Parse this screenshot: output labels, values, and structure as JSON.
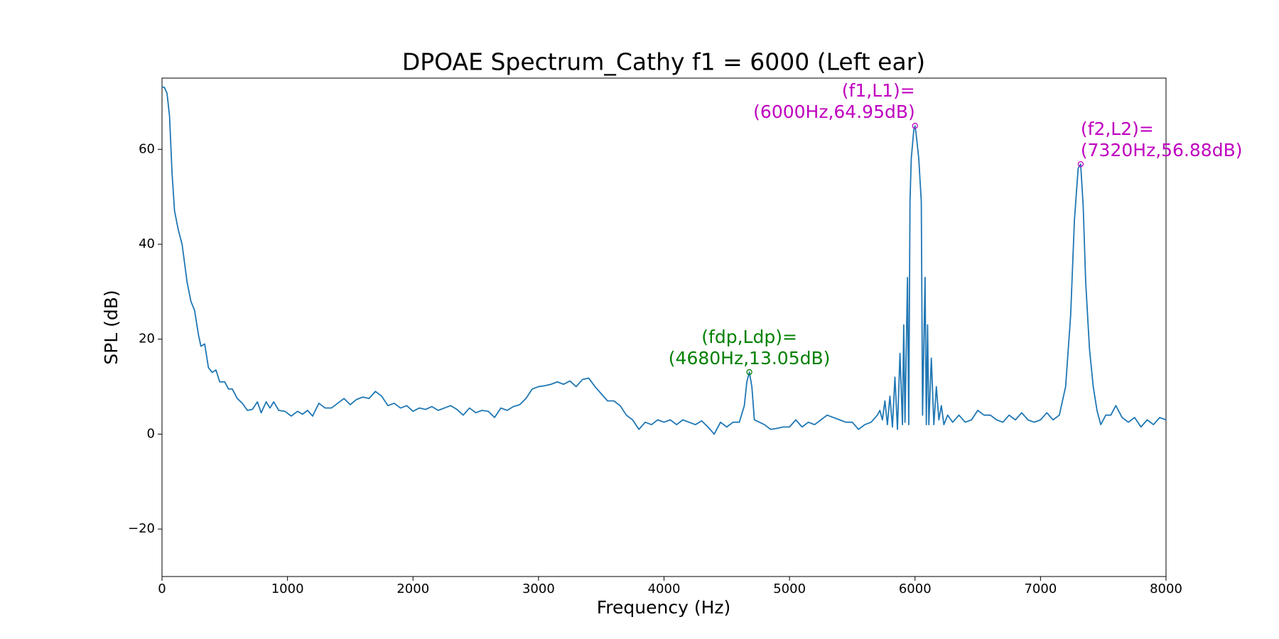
{
  "chart_data": {
    "type": "line",
    "title": "DPOAE Spectrum_Cathy f1 = 6000 (Left ear)",
    "x_label": "Frequency (Hz)",
    "y_label": "SPL (dB)",
    "color": "#1f77b4",
    "xlim": [
      0,
      8000
    ],
    "ylim": [
      -30,
      75
    ],
    "xticks": [
      0,
      1000,
      2000,
      3000,
      4000,
      5000,
      6000,
      7000,
      8000
    ],
    "yticks": [
      {
        "value": -20,
        "label": "−20"
      },
      0,
      20,
      40,
      60
    ],
    "x": [
      0,
      20,
      40,
      60,
      80,
      100,
      130,
      160,
      200,
      230,
      260,
      290,
      310,
      340,
      370,
      400,
      430,
      460,
      500,
      530,
      560,
      600,
      640,
      680,
      720,
      760,
      790,
      830,
      860,
      890,
      930,
      980,
      1030,
      1080,
      1120,
      1160,
      1200,
      1250,
      1300,
      1350,
      1400,
      1450,
      1500,
      1550,
      1600,
      1650,
      1700,
      1750,
      1800,
      1850,
      1900,
      1950,
      2000,
      2050,
      2100,
      2150,
      2200,
      2250,
      2300,
      2350,
      2400,
      2450,
      2500,
      2550,
      2600,
      2650,
      2700,
      2750,
      2800,
      2850,
      2900,
      2950,
      3000,
      3050,
      3100,
      3150,
      3200,
      3250,
      3300,
      3350,
      3400,
      3450,
      3500,
      3550,
      3600,
      3650,
      3700,
      3750,
      3800,
      3850,
      3900,
      3950,
      4000,
      4050,
      4100,
      4150,
      4200,
      4250,
      4300,
      4350,
      4400,
      4450,
      4500,
      4550,
      4600,
      4640,
      4660,
      4680,
      4700,
      4720,
      4760,
      4800,
      4850,
      4900,
      4950,
      5000,
      5050,
      5100,
      5150,
      5200,
      5250,
      5300,
      5350,
      5400,
      5450,
      5500,
      5550,
      5600,
      5650,
      5700,
      5720,
      5740,
      5760,
      5780,
      5800,
      5820,
      5840,
      5860,
      5880,
      5900,
      5910,
      5920,
      5940,
      5950,
      5960,
      5970,
      5990,
      6000,
      6010,
      6030,
      6050,
      6060,
      6080,
      6090,
      6100,
      6110,
      6130,
      6150,
      6170,
      6190,
      6210,
      6230,
      6260,
      6300,
      6350,
      6400,
      6450,
      6500,
      6550,
      6600,
      6650,
      6700,
      6750,
      6800,
      6850,
      6900,
      6950,
      7000,
      7050,
      7100,
      7150,
      7200,
      7240,
      7270,
      7300,
      7320,
      7340,
      7360,
      7390,
      7420,
      7450,
      7480,
      7520,
      7560,
      7600,
      7650,
      7700,
      7750,
      7800,
      7850,
      7900,
      7950,
      8000
    ],
    "values": [
      73.2,
      73,
      71.8,
      67,
      55,
      47,
      43,
      40,
      32,
      28,
      26,
      21,
      18.5,
      19,
      14,
      13,
      13.5,
      11,
      11,
      9.5,
      9.5,
      7.5,
      6.5,
      5,
      5.2,
      6.8,
      4.5,
      6.8,
      5.5,
      6.8,
      5,
      4.8,
      3.8,
      4.8,
      4.2,
      5,
      3.8,
      6.5,
      5.5,
      5.5,
      6.5,
      7.5,
      6.2,
      7.3,
      7.8,
      7.5,
      9,
      8,
      6,
      6.5,
      5.5,
      6,
      4.8,
      5.5,
      5.2,
      5.8,
      5,
      5.5,
      6,
      5.2,
      4,
      5.5,
      4.5,
      5,
      4.8,
      3.5,
      5.5,
      5,
      5.8,
      6.2,
      7.5,
      9.5,
      10,
      10.2,
      10.5,
      11,
      10.5,
      11.2,
      10,
      11.5,
      11.8,
      10,
      8.5,
      7,
      7,
      6,
      4,
      3,
      1,
      2.5,
      2,
      3,
      2.5,
      3,
      2,
      3,
      2.5,
      2,
      2.8,
      1.5,
      0,
      2.5,
      1.5,
      2.5,
      2.5,
      6,
      11,
      13.05,
      10,
      3,
      2.5,
      2,
      1,
      1.2,
      1.5,
      1.5,
      3,
      1.5,
      2.5,
      2,
      3,
      4,
      3.5,
      3,
      2.5,
      2.5,
      1,
      2,
      2.5,
      4,
      5,
      3,
      7,
      2,
      8,
      1.5,
      12,
      1,
      17,
      2,
      23,
      2.5,
      33,
      2,
      49,
      58,
      64,
      64.95,
      63,
      58,
      49,
      4,
      33,
      2,
      23,
      2,
      16,
      2,
      10,
      3,
      6,
      2,
      4,
      2.5,
      4,
      2.5,
      3,
      5,
      4,
      4,
      3,
      2.5,
      4,
      3,
      4.5,
      3,
      2.5,
      3,
      4.5,
      3,
      4,
      10,
      25,
      45,
      56,
      56.88,
      48,
      32,
      18,
      10,
      5,
      2,
      4,
      4,
      6,
      3.5,
      2.5,
      3.5,
      1.5,
      3,
      2,
      3.5,
      3
    ],
    "annotations": [
      {
        "x": 6000,
        "y": 64.95,
        "label": [
          "(f1,L1)=",
          "(6000Hz,64.95dB)"
        ],
        "color": "#bf00bf",
        "ha": "right"
      },
      {
        "x": 7320,
        "y": 56.88,
        "label": [
          "(f2,L2)=",
          "(7320Hz,56.88dB)"
        ],
        "color": "#bf00bf",
        "ha": "left"
      },
      {
        "x": 4680,
        "y": 13.05,
        "label": [
          "(fdp,Ldp)=",
          "(4680Hz,13.05dB)"
        ],
        "color": "#008000",
        "ha": "center"
      }
    ]
  }
}
